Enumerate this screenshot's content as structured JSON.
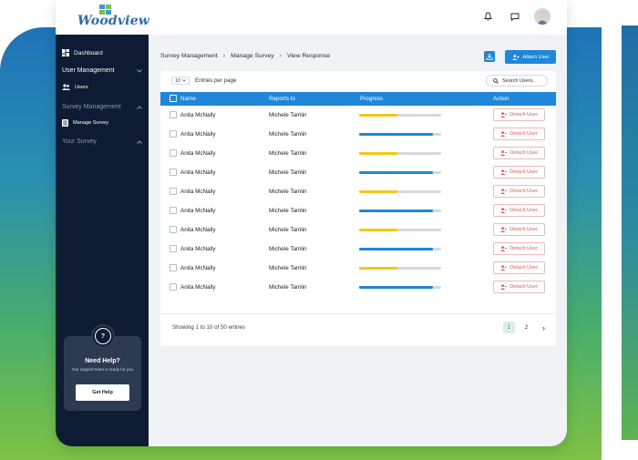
{
  "app": {
    "logo_text": "Woodview"
  },
  "sidebar": {
    "dashboard": "Dashboard",
    "user_management": "User Management",
    "users": "Users",
    "survey_management": "Survey Management",
    "manage_survey": "Manage Survey",
    "your_survey": "Your Survey",
    "help": {
      "icon_glyph": "?",
      "title": "Need Help?",
      "subtitle": "Our support team is ready for you",
      "button": "Get Help"
    }
  },
  "breadcrumb": {
    "items": [
      "Survey Management",
      "Manage Survey",
      "View Response"
    ]
  },
  "toolbar": {
    "attach_user": "Attach User"
  },
  "table_controls": {
    "entries_value": "10",
    "entries_label": "Entries per page",
    "search_placeholder": "Search Users.."
  },
  "table": {
    "headers": {
      "name": "Name",
      "reports_to": "Reports to",
      "progress": "Progress",
      "action": "Action"
    },
    "rows": [
      {
        "name": "Anita McNally",
        "reports_to": "Michele Tamlin",
        "progress": 0.47,
        "progress_color": "#f5c518",
        "action": "Detach User"
      },
      {
        "name": "Anita McNally",
        "reports_to": "Michele Tamlin",
        "progress": 0.9,
        "progress_color": "#1f86d9",
        "action": "Detach User"
      },
      {
        "name": "Anita McNally",
        "reports_to": "Michele Tamlin",
        "progress": 0.47,
        "progress_color": "#f5c518",
        "action": "Detach User"
      },
      {
        "name": "Anita McNally",
        "reports_to": "Michele Tamlin",
        "progress": 0.9,
        "progress_color": "#1f86d9",
        "action": "Detach User"
      },
      {
        "name": "Anita McNally",
        "reports_to": "Michele Tamlin",
        "progress": 0.47,
        "progress_color": "#f5c518",
        "action": "Detach User"
      },
      {
        "name": "Anita McNally",
        "reports_to": "Michele Tamlin",
        "progress": 0.9,
        "progress_color": "#1f86d9",
        "action": "Detach User"
      },
      {
        "name": "Anita McNally",
        "reports_to": "Michele Tamlin",
        "progress": 0.47,
        "progress_color": "#f5c518",
        "action": "Detach User"
      },
      {
        "name": "Anita McNally",
        "reports_to": "Michele Tamlin",
        "progress": 0.9,
        "progress_color": "#1f86d9",
        "action": "Detach User"
      },
      {
        "name": "Anita McNally",
        "reports_to": "Michele Tamlin",
        "progress": 0.47,
        "progress_color": "#f5c518",
        "action": "Detach User"
      },
      {
        "name": "Anita McNally",
        "reports_to": "Michele Tamlin",
        "progress": 0.9,
        "progress_color": "#1f86d9",
        "action": "Detach User"
      }
    ]
  },
  "pagination": {
    "summary": "Showing 1 to 10 of 50 entries",
    "pages": [
      "1",
      "2"
    ],
    "active_page": "1"
  },
  "colors": {
    "accent": "#1f86d9",
    "sidebar_bg": "#0d1b33",
    "danger": "#e45b5b",
    "success": "#1b9c5a"
  }
}
